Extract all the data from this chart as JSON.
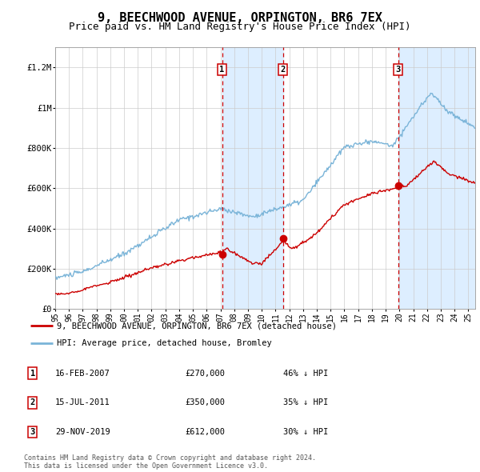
{
  "title": "9, BEECHWOOD AVENUE, ORPINGTON, BR6 7EX",
  "subtitle": "Price paid vs. HM Land Registry's House Price Index (HPI)",
  "title_fontsize": 11,
  "subtitle_fontsize": 9,
  "ylim": [
    0,
    1300000
  ],
  "yticks": [
    0,
    200000,
    400000,
    600000,
    800000,
    1000000,
    1200000
  ],
  "ytick_labels": [
    "£0",
    "£200K",
    "£400K",
    "£600K",
    "£800K",
    "£1M",
    "£1.2M"
  ],
  "hpi_color": "#7ab4d8",
  "price_color": "#cc0000",
  "background_fill": "#ddeeff",
  "sale_events": [
    {
      "label": "1",
      "date_x": 2007.12,
      "price": 270000
    },
    {
      "label": "2",
      "date_x": 2011.54,
      "price": 350000
    },
    {
      "label": "3",
      "date_x": 2019.91,
      "price": 612000
    }
  ],
  "legend_entries": [
    {
      "label": "9, BEECHWOOD AVENUE, ORPINGTON, BR6 7EX (detached house)",
      "color": "#cc0000"
    },
    {
      "label": "HPI: Average price, detached house, Bromley",
      "color": "#7ab4d8"
    }
  ],
  "table_rows": [
    {
      "num": "1",
      "date": "16-FEB-2007",
      "price": "£270,000",
      "pct": "46% ↓ HPI"
    },
    {
      "num": "2",
      "date": "15-JUL-2011",
      "price": "£350,000",
      "pct": "35% ↓ HPI"
    },
    {
      "num": "3",
      "date": "29-NOV-2019",
      "price": "£612,000",
      "pct": "30% ↓ HPI"
    }
  ],
  "footer": "Contains HM Land Registry data © Crown copyright and database right 2024.\nThis data is licensed under the Open Government Licence v3.0.",
  "xmin": 1995.0,
  "xmax": 2025.5,
  "xtick_years": [
    1995,
    1996,
    1997,
    1998,
    1999,
    2000,
    2001,
    2002,
    2003,
    2004,
    2005,
    2006,
    2007,
    2008,
    2009,
    2010,
    2011,
    2012,
    2013,
    2014,
    2015,
    2016,
    2017,
    2018,
    2019,
    2020,
    2021,
    2022,
    2023,
    2024,
    2025
  ]
}
